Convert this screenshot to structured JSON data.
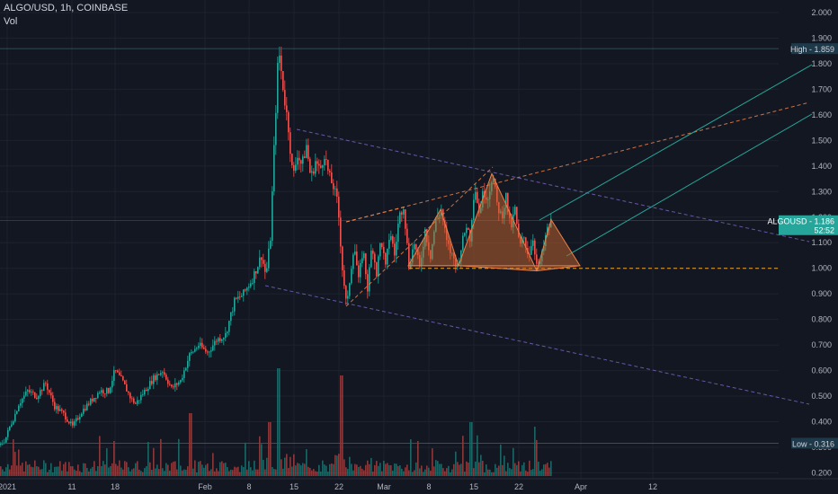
{
  "header": {
    "symbol_line": "ALGO/USD, 1h, COINBASE",
    "volume_label": "Vol"
  },
  "badges": {
    "high_label": "High",
    "high_value": "1.859",
    "price_symbol": "ALGOUSD",
    "price_value": "1.186",
    "countdown": "52:52",
    "low_label": "Low",
    "low_value": "0.316"
  },
  "colors": {
    "background": "#131722",
    "up": "#26a69a",
    "down": "#ef5350",
    "pattern_fill": "#c8652e",
    "pattern_stroke": "#e8804a",
    "channel_dash": "#7b68c8",
    "wedge_dash": "#e8804a",
    "teal_channel": "#26a69a",
    "support": "#f5a623"
  },
  "chart_data": {
    "type": "candlestick",
    "title": "ALGO/USD, 1h, COINBASE",
    "xlabel": "",
    "ylabel": "",
    "x_ticks": [
      "2021",
      "11",
      "18",
      "Feb",
      "8",
      "15",
      "22",
      "Mar",
      "8",
      "15",
      "22",
      "Apr",
      "12"
    ],
    "y_ticks": [
      "2.000",
      "1.900",
      "1.800",
      "1.700",
      "1.600",
      "1.500",
      "1.400",
      "1.300",
      "1.200",
      "1.100",
      "1.000",
      "0.900",
      "0.800",
      "0.700",
      "0.600",
      "0.500",
      "0.400",
      "0.300",
      "0.200"
    ],
    "ylim": [
      0.17,
      2.04
    ],
    "price_path": [
      [
        0,
        0.31
      ],
      [
        5,
        0.33
      ],
      [
        10,
        0.38
      ],
      [
        15,
        0.42
      ],
      [
        20,
        0.47
      ],
      [
        30,
        0.52
      ],
      [
        40,
        0.5
      ],
      [
        50,
        0.55
      ],
      [
        60,
        0.46
      ],
      [
        70,
        0.43
      ],
      [
        80,
        0.38
      ],
      [
        90,
        0.44
      ],
      [
        100,
        0.48
      ],
      [
        110,
        0.52
      ],
      [
        120,
        0.52
      ],
      [
        127,
        0.6
      ],
      [
        135,
        0.56
      ],
      [
        145,
        0.49
      ],
      [
        150,
        0.47
      ],
      [
        160,
        0.52
      ],
      [
        170,
        0.57
      ],
      [
        180,
        0.6
      ],
      [
        190,
        0.53
      ],
      [
        200,
        0.56
      ],
      [
        210,
        0.66
      ],
      [
        220,
        0.7
      ],
      [
        230,
        0.67
      ],
      [
        240,
        0.72
      ],
      [
        250,
        0.74
      ],
      [
        260,
        0.87
      ],
      [
        270,
        0.9
      ],
      [
        280,
        0.96
      ],
      [
        290,
        1.05
      ],
      [
        295,
        0.97
      ],
      [
        300,
        1.12
      ],
      [
        305,
        1.55
      ],
      [
        309,
        1.86
      ],
      [
        315,
        1.68
      ],
      [
        320,
        1.55
      ],
      [
        325,
        1.35
      ],
      [
        330,
        1.45
      ],
      [
        335,
        1.4
      ],
      [
        340,
        1.48
      ],
      [
        345,
        1.35
      ],
      [
        350,
        1.42
      ],
      [
        355,
        1.38
      ],
      [
        360,
        1.45
      ],
      [
        365,
        1.36
      ],
      [
        370,
        1.32
      ],
      [
        375,
        1.25
      ],
      [
        380,
        1.0
      ],
      [
        385,
        0.84
      ],
      [
        388,
        0.95
      ],
      [
        393,
        1.1
      ],
      [
        398,
        0.95
      ],
      [
        403,
        1.08
      ],
      [
        408,
        0.92
      ],
      [
        413,
        1.1
      ],
      [
        418,
        0.98
      ],
      [
        423,
        1.12
      ],
      [
        428,
        1.0
      ],
      [
        433,
        1.15
      ],
      [
        438,
        1.05
      ],
      [
        443,
        1.2
      ],
      [
        448,
        1.25
      ],
      [
        454,
        1.01
      ],
      [
        460,
        1.1
      ],
      [
        466,
        1.0
      ],
      [
        472,
        1.15
      ],
      [
        478,
        1.05
      ],
      [
        484,
        1.19
      ],
      [
        490,
        1.23
      ],
      [
        496,
        1.1
      ],
      [
        502,
        1.05
      ],
      [
        508,
        1.01
      ],
      [
        512,
        1.08
      ],
      [
        518,
        1.17
      ],
      [
        522,
        1.12
      ],
      [
        527,
        1.33
      ],
      [
        532,
        1.22
      ],
      [
        537,
        1.3
      ],
      [
        542,
        1.28
      ],
      [
        547,
        1.37
      ],
      [
        552,
        1.25
      ],
      [
        557,
        1.2
      ],
      [
        562,
        1.28
      ],
      [
        567,
        1.15
      ],
      [
        572,
        1.23
      ],
      [
        577,
        1.08
      ],
      [
        582,
        1.12
      ],
      [
        587,
        1.05
      ],
      [
        592,
        1.12
      ],
      [
        597,
        0.99
      ],
      [
        602,
        1.05
      ],
      [
        607,
        1.14
      ],
      [
        613,
        1.19
      ]
    ],
    "volume_series": "per-bar volume histogram with spikes up to ~0.15 of price-axis scale near Feb 8–15 and Feb 22",
    "drawings": {
      "head_and_shoulders": [
        [
          454,
          1.01
        ],
        [
          490,
          1.23
        ],
        [
          510,
          1.01
        ],
        [
          547,
          1.37
        ],
        [
          597,
          0.99
        ],
        [
          613,
          1.19
        ],
        [
          645,
          1.01
        ]
      ],
      "support_level": 1.0
    }
  }
}
